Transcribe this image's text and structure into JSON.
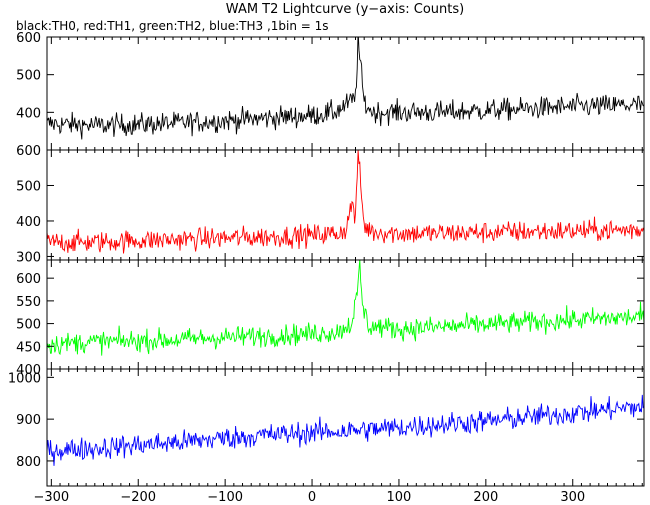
{
  "chart_data": {
    "type": "line",
    "title": "WAM T2 Lightcurve (y−axis: Counts)",
    "subtitle": "black:TH0, red:TH1, green:TH2, blue:TH3 ,1bin = 1s",
    "xlabel": "",
    "ylabel": "",
    "xlim": [
      -305,
      382
    ],
    "x_ticks": [
      -300,
      -200,
      -100,
      0,
      100,
      200,
      300
    ],
    "x_tick_labels": [
      "−300",
      "−200",
      "−100",
      "0",
      "100",
      "200",
      "300"
    ],
    "grid": false,
    "panels": [
      {
        "series": "TH0",
        "color": "#000000",
        "ylim": [
          300,
          600
        ],
        "y_ticks": [
          400,
          500,
          600
        ],
        "x": [
          -300,
          -250,
          -200,
          -150,
          -100,
          -50,
          0,
          25,
          40,
          50,
          53,
          56,
          60,
          70,
          100,
          150,
          200,
          250,
          300,
          380
        ],
        "y": [
          370,
          365,
          368,
          372,
          378,
          385,
          392,
          400,
          420,
          440,
          590,
          520,
          425,
          400,
          400,
          400,
          405,
          410,
          415,
          420
        ]
      },
      {
        "series": "TH1",
        "color": "#ff0000",
        "ylim": [
          290,
          600
        ],
        "y_ticks": [
          300,
          400,
          500,
          600
        ],
        "x": [
          -300,
          -250,
          -200,
          -150,
          -100,
          -50,
          0,
          30,
          40,
          46,
          50,
          53,
          56,
          60,
          70,
          100,
          150,
          200,
          250,
          300,
          380
        ],
        "y": [
          340,
          340,
          345,
          348,
          352,
          355,
          360,
          365,
          380,
          460,
          395,
          600,
          500,
          385,
          370,
          365,
          365,
          368,
          370,
          372,
          375
        ]
      },
      {
        "series": "TH2",
        "color": "#00ff00",
        "ylim": [
          400,
          640
        ],
        "y_ticks": [
          400,
          450,
          500,
          550,
          600
        ],
        "x": [
          -300,
          -250,
          -200,
          -150,
          -100,
          -50,
          0,
          30,
          45,
          52,
          55,
          58,
          65,
          100,
          150,
          200,
          250,
          300,
          380
        ],
        "y": [
          455,
          460,
          462,
          465,
          470,
          473,
          478,
          482,
          500,
          560,
          630,
          540,
          495,
          488,
          493,
          498,
          503,
          508,
          515
        ]
      },
      {
        "series": "TH3",
        "color": "#0000ff",
        "ylim": [
          740,
          1020
        ],
        "y_ticks": [
          800,
          900,
          1000
        ],
        "x": [
          -300,
          -250,
          -200,
          -150,
          -100,
          -50,
          0,
          50,
          100,
          150,
          200,
          250,
          300,
          350,
          380
        ],
        "y": [
          825,
          830,
          838,
          845,
          855,
          862,
          868,
          873,
          880,
          888,
          895,
          905,
          915,
          925,
          930
        ]
      }
    ]
  }
}
